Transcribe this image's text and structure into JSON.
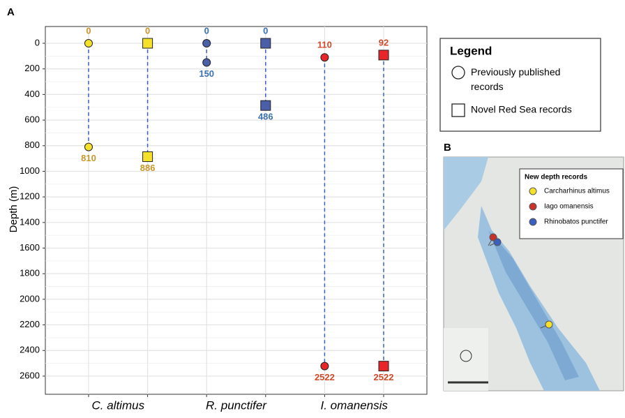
{
  "chart_data": {
    "type": "depth-range",
    "panel_label": "A",
    "y_label": "Depth (m)",
    "categories": [
      "C. altimus",
      "R. punctifer",
      "I. omanensis"
    ],
    "colors": [
      "#f5e12a",
      "#4a5fa8",
      "#e8262a"
    ],
    "label_colors": [
      "#c8962a",
      "#3a72b0",
      "#d04a2a"
    ],
    "series": [
      {
        "name": "Previously published records",
        "marker": "circle",
        "min": [
          0,
          0,
          110
        ],
        "max": [
          810,
          150,
          2522
        ]
      },
      {
        "name": "Novel Red Sea records",
        "marker": "square",
        "min": [
          0,
          0,
          92
        ],
        "max": [
          886,
          486,
          2522
        ]
      }
    ],
    "ylim": [
      -131,
      2742
    ],
    "y_inverted": true,
    "yticks": [
      0,
      200,
      400,
      600,
      800,
      1000,
      1200,
      1400,
      1600,
      1800,
      2000,
      2200,
      2400,
      2600
    ],
    "grid": true,
    "legend_title": "Legend"
  },
  "map": {
    "panel_label": "B",
    "legend_title": "New depth records",
    "legend": [
      "Carcharhinus altimus",
      "Iago omanensis",
      "Rhinobatos punctifer"
    ]
  }
}
